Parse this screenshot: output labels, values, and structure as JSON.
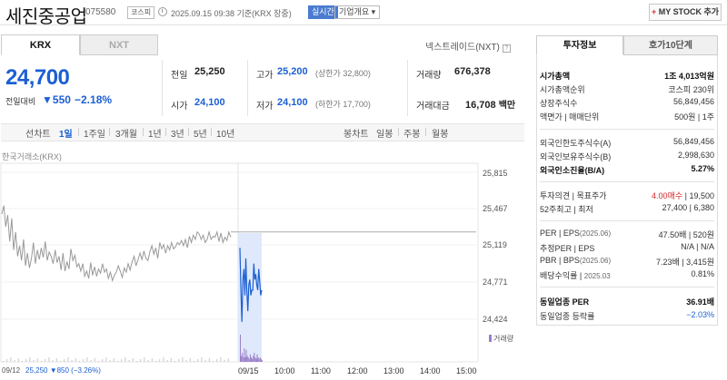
{
  "header": {
    "stock_name": "세진중공업",
    "stock_code": "075580",
    "market_badge": "코스피",
    "datetime": "2025.09.15 09:38 기준(KRX 장중)",
    "realtime_label": "실시간",
    "corp_overview_label": "기업개요 ▾",
    "mystock_plus": "+",
    "mystock_label": "MY STOCK 추가"
  },
  "tabs": {
    "krx": "KRX",
    "nxt": "NXT"
  },
  "nxt_link": "넥스트레이드(NXT)",
  "help_glyph": "?",
  "quote": {
    "price": "24,700",
    "diff_label": "전일대비",
    "diff_arrow": "▼",
    "diff_value": "550",
    "diff_pct": "−2.18%",
    "prev_close_label": "전일",
    "prev_close": "25,250",
    "high_label": "고가",
    "high": "25,200",
    "upper_limit": "(상한가 32,800)",
    "volume_label": "거래량",
    "volume": "676,378",
    "open_label": "시가",
    "open": "24,100",
    "low_label": "저가",
    "low": "24,100",
    "lower_limit": "(하한가 17,700)",
    "trade_value_label": "거래대금",
    "trade_value": "16,708",
    "trade_value_unit": "백만"
  },
  "range_bar": {
    "line_label": "선차트",
    "line_periods": [
      "1일",
      "1주일",
      "3개월",
      "1년",
      "3년",
      "5년",
      "10년"
    ],
    "active_period": "1일",
    "candle_label": "봉차트",
    "candle_periods": [
      "일봉",
      "주봉",
      "월봉"
    ]
  },
  "chart_data": {
    "type": "line",
    "source_label": "한국거래소(KRX)",
    "volume_legend": "거래량",
    "y_ticks": [
      "25,815",
      "25,467",
      "25,119",
      "24,771",
      "24,424"
    ],
    "ylim": [
      24424,
      25815
    ],
    "x_ticks": [
      "09/15",
      "10:00",
      "11:00",
      "12:00",
      "13:00",
      "14:00",
      "15:00"
    ],
    "prev_close": 25250,
    "footer_date": "09/12",
    "footer_price": "25,250 ▼850 (−3.26%)",
    "series": [
      {
        "values": [
          25420,
          25500,
          25300,
          25410,
          25160,
          25380,
          25080,
          25250,
          25020,
          25120,
          24980,
          25180,
          24930,
          25050,
          24910,
          25000,
          25150,
          24950,
          25080,
          24990,
          25100,
          25010,
          25160,
          24980,
          25060,
          25020,
          24950,
          25080,
          24960,
          25020,
          24890,
          25050,
          24880,
          24970,
          24900,
          25090,
          24980,
          25030,
          24920,
          24950,
          24880,
          24950,
          24830,
          24880,
          24810,
          24960,
          24840,
          24920,
          24830,
          24900,
          24860,
          24950,
          24870,
          24900,
          24810,
          24870,
          24790,
          24840,
          24870,
          24930,
          24880,
          24820,
          24910,
          24870,
          24950,
          24890,
          24970,
          25020,
          24930,
          24990,
          25050,
          24990,
          25070,
          25000,
          24980,
          25060,
          25120,
          25040,
          25100,
          25000,
          25150,
          25090,
          25130,
          25050,
          25120,
          25080,
          25150,
          25090,
          25110,
          25150,
          25130,
          25170,
          25120,
          25180,
          25100,
          25210,
          25150,
          25220,
          25180,
          25250,
          25230,
          25180,
          25220,
          25150,
          25180,
          25250,
          25180,
          25210,
          25200,
          25250,
          25160,
          25240,
          25150,
          25200,
          25170,
          25250,
          25200
        ]
      },
      {
        "values": [
          25100,
          24700,
          24400,
          24800,
          24900,
          24650,
          25000,
          24700,
          24500,
          24750,
          24800,
          24650,
          24700,
          24700,
          24950,
          24800,
          24850,
          24750,
          24700,
          24900,
          24780,
          24650,
          24700
        ]
      }
    ],
    "volume_values": [
      18,
      4,
      6,
      3,
      9,
      3,
      8,
      4,
      3,
      2,
      5,
      3,
      2,
      4,
      6,
      3,
      2,
      5,
      3,
      2,
      3,
      2,
      1
    ]
  },
  "right_tabs": {
    "invest": "투자정보",
    "orderbook": "호가10단계"
  },
  "invest_info": {
    "group1": [
      {
        "k": "시가총액",
        "v": "1조 4,013억원",
        "style": "bold"
      },
      {
        "k": "시가총액순위",
        "v": "코스피 230위"
      },
      {
        "k": "상장주식수",
        "v": "56,849,456"
      },
      {
        "k": "액면가 | 매매단위",
        "v": "500원 | 1주"
      }
    ],
    "group2": [
      {
        "k": "외국인한도주식수(A)",
        "v": "56,849,456"
      },
      {
        "k": "외국인보유주식수(B)",
        "v": "2,998,630"
      },
      {
        "k": "외국인소진율(B/A)",
        "v": "5.27%",
        "style": "bold"
      }
    ],
    "group3": [
      {
        "k": "투자의견 | 목표주가",
        "v_red": "4.00매수",
        "v": " | 19,500"
      },
      {
        "k": "52주최고 | 최저",
        "v": "27,400 | 6,380"
      }
    ],
    "group4": [
      {
        "k": "PER | EPS",
        "sub": "(2025.06)",
        "v": "47.50배 | 520원"
      },
      {
        "k": "추정PER | EPS",
        "v": "N/A | N/A"
      },
      {
        "k": "PBR | BPS",
        "sub": "(2025.06)",
        "v": "7.23배 | 3,415원"
      },
      {
        "k": "배당수익률 | ",
        "sub": "2025.03",
        "v": "0.81%"
      }
    ],
    "group5": [
      {
        "k": "동일업종 PER",
        "v": "36.91배",
        "style": "bold"
      },
      {
        "k": "동일업종 등락률",
        "v": "−2.03%",
        "style": "blue"
      }
    ]
  },
  "colors": {
    "down": "#1c5fd3",
    "up": "#d4262c",
    "volume": "#9a7fc8",
    "line": "#999999",
    "today_line": "#1c5fd3",
    "highlight": "#dfe9fb"
  }
}
